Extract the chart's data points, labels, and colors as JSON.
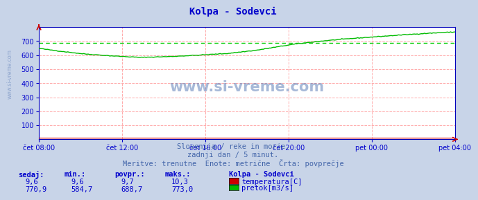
{
  "title": "Kolpa - Sodevci",
  "title_color": "#0000cc",
  "bg_color": "#c8d4e8",
  "plot_bg_color": "#ffffff",
  "grid_color": "#ffaaaa",
  "grid_style": "--",
  "xlabel_color": "#0000cc",
  "axis_color": "#0000bb",
  "yticks": [
    100,
    200,
    300,
    400,
    500,
    600,
    700
  ],
  "ylim": [
    0,
    800
  ],
  "xtick_labels": [
    "čet 08:00",
    "čet 12:00",
    "čet 16:00",
    "čet 20:00",
    "pet 00:00",
    "pet 04:00"
  ],
  "watermark": "www.si-vreme.com",
  "watermark_color": "#6080b8",
  "subtitle1": "Slovenija / reke in morje.",
  "subtitle2": "zadnji dan / 5 minut.",
  "subtitle3": "Meritve: trenutne  Enote: metrične  Črta: povprečje",
  "subtitle_color": "#4466aa",
  "legend_title": "Kolpa - Sodevci",
  "legend_color": "#0000cc",
  "temp_color": "#cc0000",
  "flow_color": "#00bb00",
  "avg_line_color": "#00cc00",
  "avg_line_style": "--",
  "temp_avg": 9.7,
  "flow_avg": 688.7,
  "temp_min": 9.6,
  "temp_max": 10.3,
  "temp_current": 9.6,
  "flow_min": 584.7,
  "flow_max": 773.0,
  "flow_current": 770.9,
  "table_header": [
    "sedaj:",
    "min.:",
    "povpr.:",
    "maks.:"
  ],
  "table_color": "#0000cc"
}
